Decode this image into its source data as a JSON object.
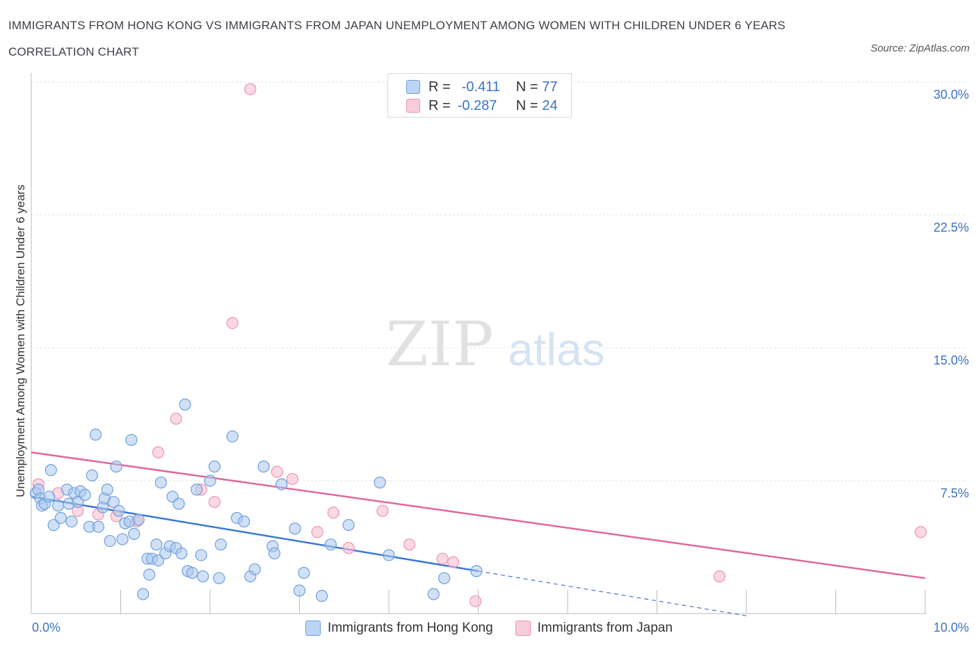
{
  "header": {
    "title": "IMMIGRANTS FROM HONG KONG VS IMMIGRANTS FROM JAPAN UNEMPLOYMENT AMONG WOMEN WITH CHILDREN UNDER 6 YEARS CORRELATION CHART",
    "source": "Source: ZipAtlas.com"
  },
  "watermark": {
    "zip": "ZIP",
    "atlas": "atlas"
  },
  "legend": {
    "rows": [
      {
        "r_label": "R =",
        "r_value": "-0.411",
        "n_label": "N =",
        "n_value": "77"
      },
      {
        "r_label": "R =",
        "r_value": "-0.287",
        "n_label": "N =",
        "n_value": "24"
      }
    ]
  },
  "bottom_legend": {
    "hong_kong": "Immigrants from Hong Kong",
    "japan": "Immigrants from Japan"
  },
  "colors": {
    "hk_fill": "#a9c8f0",
    "hk_stroke": "#6f9ed8",
    "hk_line": "#3a78d4",
    "jp_fill": "#f6bfd0",
    "jp_stroke": "#ee93b0",
    "jp_line": "#e0679a",
    "tick_text": "#3a73c8",
    "grid": "#e2e2e2"
  },
  "chart_data": {
    "type": "scatter",
    "title": "IMMIGRANTS FROM HONG KONG VS IMMIGRANTS FROM JAPAN UNEMPLOYMENT AMONG WOMEN WITH CHILDREN UNDER 6 YEARS CORRELATION CHART",
    "xlabel": "",
    "ylabel": "Unemployment Among Women with Children Under 6 years",
    "xlim": [
      0,
      10
    ],
    "ylim": [
      0,
      30
    ],
    "x_tick_labels": [
      "0.0%",
      "10.0%"
    ],
    "y_ticks": [
      7.5,
      15,
      22.5,
      30
    ],
    "y_tick_labels": [
      "7.5%",
      "15.0%",
      "22.5%",
      "30.0%"
    ],
    "grid": true,
    "series": [
      {
        "name": "Immigrants from Hong Kong",
        "r": -0.411,
        "n": 77,
        "trend": {
          "x0": 0,
          "y0": 6.6,
          "x1": 5.0,
          "y1": 2.4,
          "dash_to_x": 8.0
        },
        "points": [
          [
            0.05,
            6.8
          ],
          [
            0.08,
            7.0
          ],
          [
            0.1,
            6.5
          ],
          [
            0.12,
            6.1
          ],
          [
            0.15,
            6.2
          ],
          [
            0.2,
            6.6
          ],
          [
            0.22,
            8.1
          ],
          [
            0.25,
            5.0
          ],
          [
            0.3,
            6.1
          ],
          [
            0.33,
            5.4
          ],
          [
            0.4,
            7.0
          ],
          [
            0.42,
            6.2
          ],
          [
            0.45,
            5.2
          ],
          [
            0.48,
            6.8
          ],
          [
            0.52,
            6.3
          ],
          [
            0.55,
            6.9
          ],
          [
            0.6,
            6.7
          ],
          [
            0.65,
            4.9
          ],
          [
            0.68,
            7.8
          ],
          [
            0.72,
            10.1
          ],
          [
            0.75,
            4.9
          ],
          [
            0.8,
            6.0
          ],
          [
            0.82,
            6.5
          ],
          [
            0.85,
            7.0
          ],
          [
            0.88,
            4.1
          ],
          [
            0.92,
            6.3
          ],
          [
            0.95,
            8.3
          ],
          [
            0.98,
            5.8
          ],
          [
            1.02,
            4.2
          ],
          [
            1.05,
            5.1
          ],
          [
            1.1,
            5.2
          ],
          [
            1.12,
            9.8
          ],
          [
            1.15,
            4.5
          ],
          [
            1.2,
            5.3
          ],
          [
            1.25,
            1.1
          ],
          [
            1.3,
            3.1
          ],
          [
            1.32,
            2.2
          ],
          [
            1.35,
            3.1
          ],
          [
            1.4,
            3.9
          ],
          [
            1.42,
            3.0
          ],
          [
            1.45,
            7.4
          ],
          [
            1.5,
            3.4
          ],
          [
            1.55,
            3.8
          ],
          [
            1.58,
            6.6
          ],
          [
            1.62,
            3.7
          ],
          [
            1.65,
            6.2
          ],
          [
            1.68,
            3.4
          ],
          [
            1.72,
            11.8
          ],
          [
            1.75,
            2.4
          ],
          [
            1.8,
            2.3
          ],
          [
            1.85,
            7.0
          ],
          [
            1.9,
            3.3
          ],
          [
            1.92,
            2.1
          ],
          [
            2.0,
            7.5
          ],
          [
            2.05,
            8.3
          ],
          [
            2.1,
            2.0
          ],
          [
            2.12,
            3.9
          ],
          [
            2.25,
            10.0
          ],
          [
            2.3,
            5.4
          ],
          [
            2.38,
            5.2
          ],
          [
            2.45,
            2.1
          ],
          [
            2.5,
            2.5
          ],
          [
            2.6,
            8.3
          ],
          [
            2.7,
            3.8
          ],
          [
            2.72,
            3.4
          ],
          [
            2.8,
            7.3
          ],
          [
            2.95,
            4.8
          ],
          [
            3.05,
            2.3
          ],
          [
            3.25,
            1.0
          ],
          [
            3.35,
            3.9
          ],
          [
            3.55,
            5.0
          ],
          [
            3.9,
            7.4
          ],
          [
            4.0,
            3.3
          ],
          [
            4.5,
            1.1
          ],
          [
            4.62,
            2.0
          ],
          [
            4.98,
            2.4
          ],
          [
            3.0,
            1.3
          ]
        ]
      },
      {
        "name": "Immigrants from Japan",
        "r": -0.287,
        "n": 24,
        "trend": {
          "x0": 0,
          "y0": 9.1,
          "x1": 10.0,
          "y1": 2.0
        },
        "points": [
          [
            0.08,
            7.3
          ],
          [
            0.3,
            6.8
          ],
          [
            0.52,
            5.8
          ],
          [
            0.75,
            5.6
          ],
          [
            0.95,
            5.5
          ],
          [
            1.18,
            5.2
          ],
          [
            1.42,
            9.1
          ],
          [
            1.62,
            11.0
          ],
          [
            1.9,
            7.0
          ],
          [
            2.05,
            6.3
          ],
          [
            2.25,
            16.4
          ],
          [
            2.45,
            29.6
          ],
          [
            2.75,
            8.0
          ],
          [
            2.92,
            7.6
          ],
          [
            3.2,
            4.6
          ],
          [
            3.38,
            5.7
          ],
          [
            3.55,
            3.7
          ],
          [
            3.93,
            5.8
          ],
          [
            4.23,
            3.9
          ],
          [
            4.6,
            3.1
          ],
          [
            4.72,
            2.9
          ],
          [
            4.97,
            0.7
          ],
          [
            7.7,
            2.1
          ],
          [
            9.95,
            4.6
          ]
        ]
      }
    ]
  }
}
